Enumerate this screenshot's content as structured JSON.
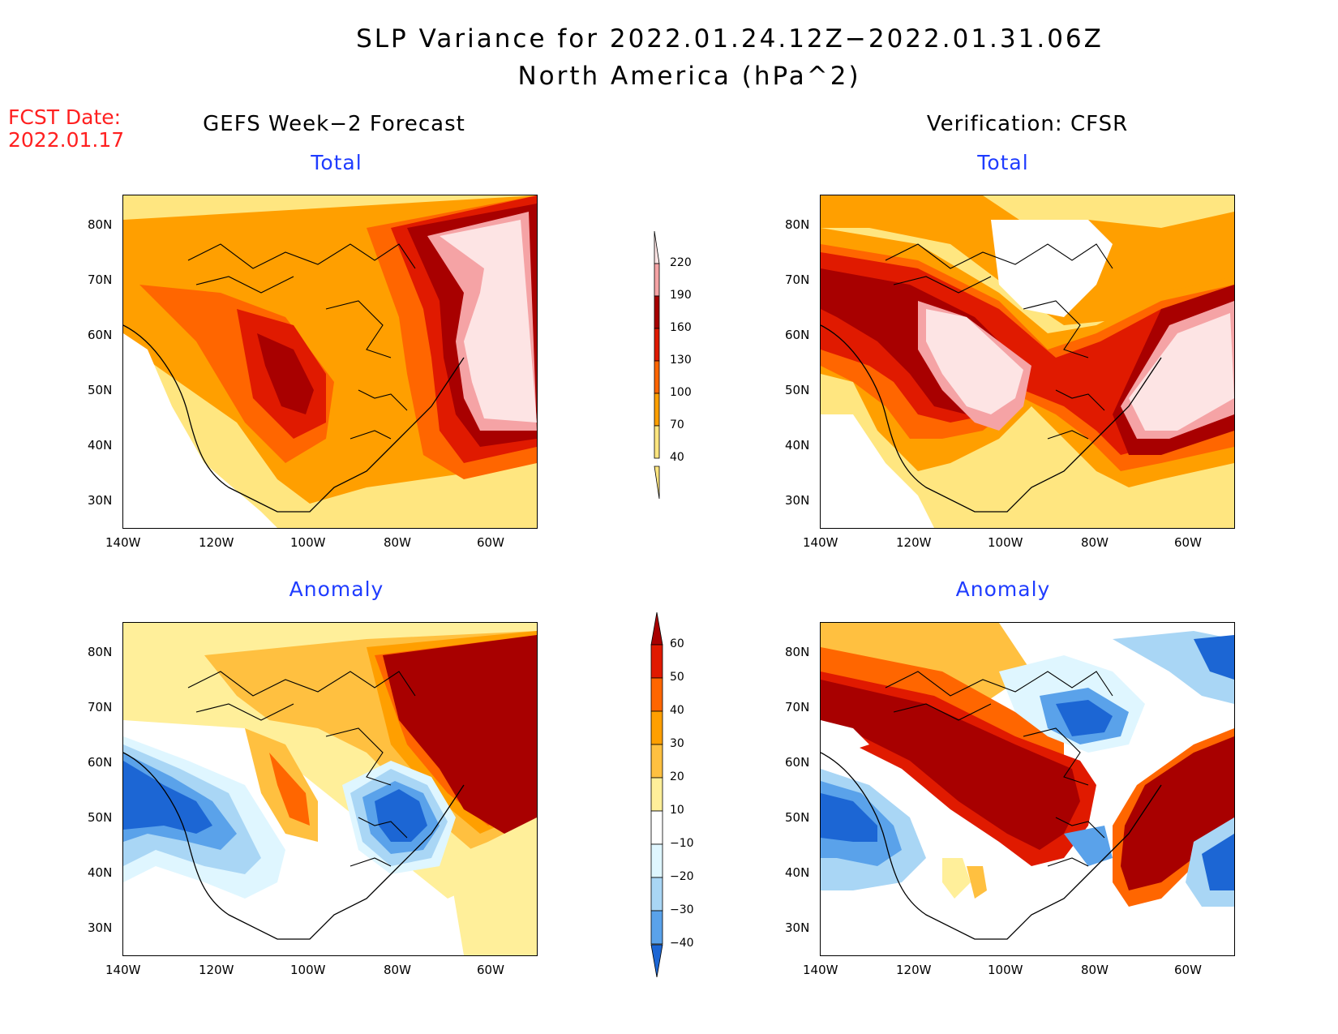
{
  "title_line1": "SLP Variance for 2022.01.24.12Z−2022.01.31.06Z",
  "title_line2": "North America (hPa^2)",
  "fcst_date_label": "FCST Date:",
  "fcst_date_value": "2022.01.17",
  "left_header": "GEFS Week−2 Forecast",
  "right_header": "Verification: CFSR",
  "panel_titles": {
    "forecast_total": "Total",
    "verif_total": "Total",
    "forecast_anom": "Anomaly",
    "verif_anom": "Anomaly"
  },
  "lat_labels": [
    "80N",
    "70N",
    "60N",
    "50N",
    "40N",
    "30N"
  ],
  "lon_labels": [
    "140W",
    "120W",
    "100W",
    "80W",
    "60W"
  ],
  "total_colorbar": {
    "levels": [
      "220",
      "190",
      "160",
      "130",
      "100",
      "70",
      "40"
    ],
    "colors": [
      "#fde4e4",
      "#f5a3a5",
      "#a80000",
      "#e01a00",
      "#ff6600",
      "#ff9f00",
      "#ffe680"
    ]
  },
  "anom_colorbar": {
    "levels": [
      "60",
      "50",
      "40",
      "30",
      "20",
      "10",
      "−10",
      "−20",
      "−30",
      "−40"
    ],
    "colors": [
      "#a80000",
      "#e01a00",
      "#ff6600",
      "#ff9f00",
      "#ffc040",
      "#ffef9a",
      "#ffffff",
      "#dff6ff",
      "#a9d6f5",
      "#5aa2ea",
      "#1c66d4"
    ]
  }
}
